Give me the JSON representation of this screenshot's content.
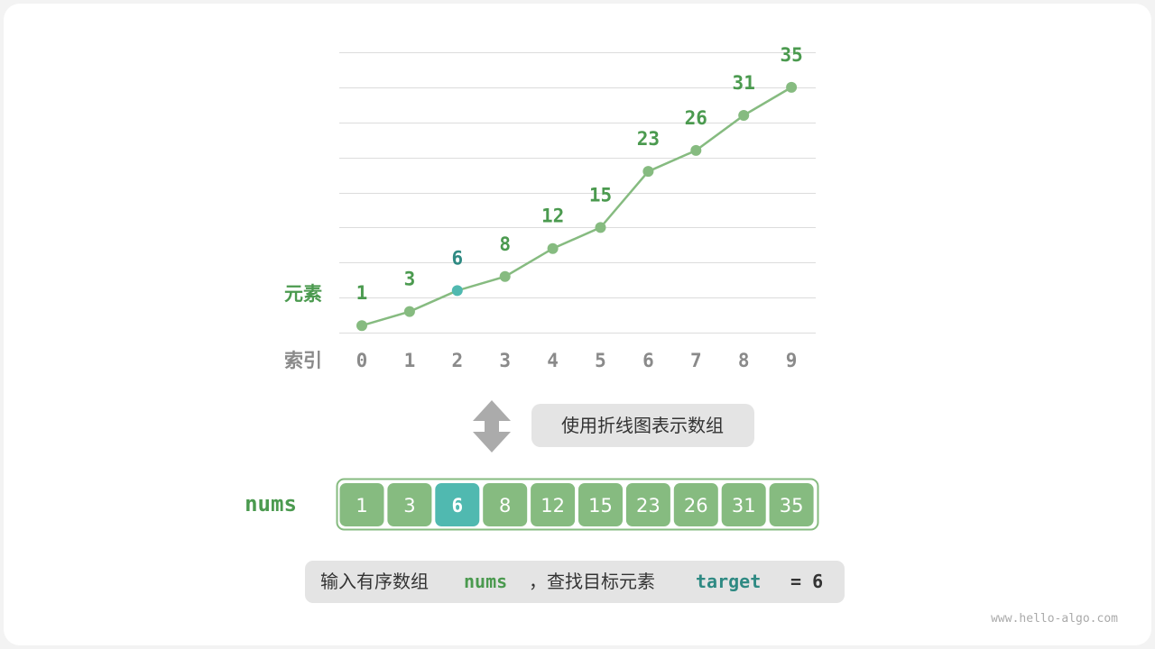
{
  "chart_data": {
    "type": "line",
    "xlabel": "索引",
    "ylabel": "元素",
    "x": [
      0,
      1,
      2,
      3,
      4,
      5,
      6,
      7,
      8,
      9
    ],
    "values": [
      1,
      3,
      6,
      8,
      12,
      15,
      23,
      26,
      31,
      35
    ],
    "highlight_index": 2,
    "ylim": [
      0,
      40
    ],
    "grid": true
  },
  "arrow_caption": "使用折线图表示数组",
  "array": {
    "name": "nums",
    "values": [
      1,
      3,
      6,
      8,
      12,
      15,
      23,
      26,
      31,
      35
    ]
  },
  "caption": {
    "prefix": "输入有序数组",
    "nums": "nums",
    "middle": "，查找目标元素",
    "target": "target",
    "suffix": "= 6"
  },
  "watermark": "www.hello-algo.com",
  "colors": {
    "green": "#86bb80",
    "dark_green": "#4b9a4f",
    "teal": "#50b9b0",
    "dark_teal": "#2f8a83",
    "gray_text": "#8a8a8a",
    "bubble": "#e4e4e4"
  }
}
